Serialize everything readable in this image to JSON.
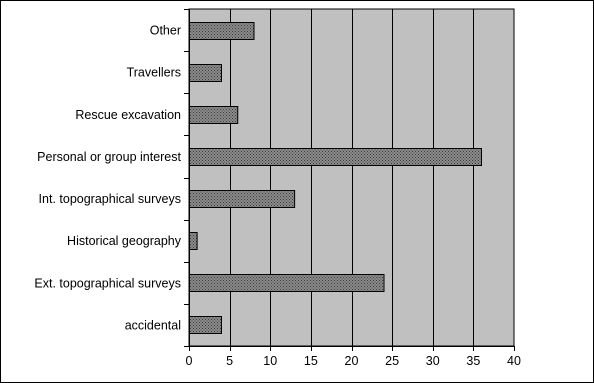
{
  "chart_data": {
    "type": "bar",
    "orientation": "horizontal",
    "title": "",
    "xlabel": "",
    "ylabel": "",
    "categories": [
      "Other",
      "Travellers",
      "Rescue excavation",
      "Personal or group interest",
      "Int. topographical surveys",
      "Historical geography",
      "Ext. topographical surveys",
      "accidental"
    ],
    "values": [
      8,
      4,
      6,
      36,
      13,
      1,
      24,
      4
    ],
    "xlim": [
      0,
      40
    ],
    "xticks": [
      "0",
      "5",
      "10",
      "15",
      "20",
      "25",
      "30",
      "35",
      "40"
    ],
    "grid": "vertical",
    "legend": "none",
    "colors": {
      "plot_background": "#c0c0c0",
      "bar_fill": "#808080",
      "bar_stroke": "#000000",
      "gridline": "#000000"
    }
  }
}
